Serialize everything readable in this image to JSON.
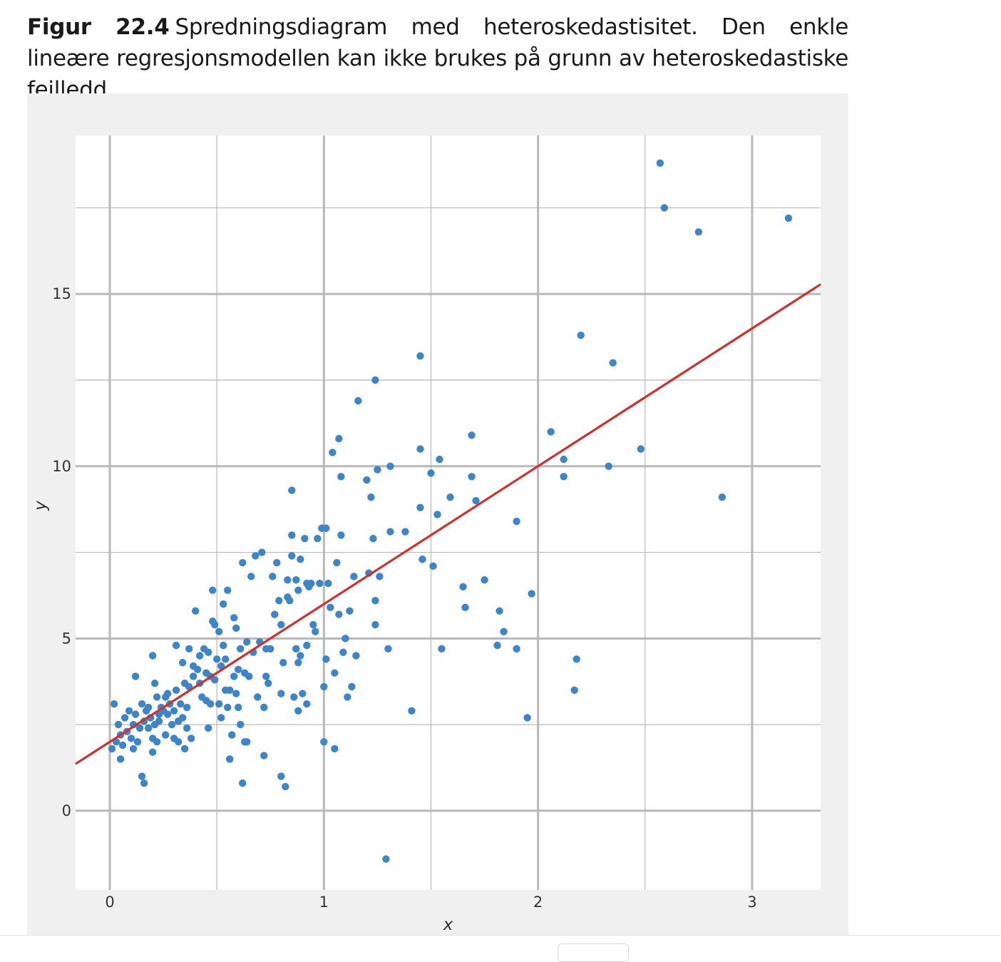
{
  "caption": {
    "label": "Figur 22.4",
    "text": "Spredningsdiagram med heteroskedastisitet. Den enkle lineære regresjonsmodellen kan ikke brukes på grunn av heteroskedastiske feilledd."
  },
  "chart_data": {
    "type": "scatter",
    "title": "",
    "xlabel": "x",
    "ylabel": "y",
    "xlim": [
      -0.16,
      3.32
    ],
    "ylim": [
      -2.3,
      19.6
    ],
    "xticks": [
      0,
      1,
      2,
      3
    ],
    "xtick_labels": [
      "0",
      "1",
      "2",
      "3"
    ],
    "yticks": [
      0,
      5,
      10,
      15
    ],
    "ytick_labels": [
      "0",
      "5",
      "10",
      "15"
    ],
    "x_minor_grid": [
      0.5,
      1.5,
      2.5
    ],
    "y_minor_grid": [
      2.5,
      7.5,
      12.5,
      17.5
    ],
    "grid": true,
    "point_color": "#3d85c6",
    "line_color": "#d03030",
    "panel_color": "#ffffff",
    "frame_color": "#f0f0f0",
    "grid_color": "#b8b8b8",
    "regression_line": {
      "intercept": 2.0,
      "slope": 4.0,
      "x_range": [
        -0.16,
        3.32
      ]
    },
    "points": [
      [
        0.02,
        3.1
      ],
      [
        0.01,
        1.8
      ],
      [
        0.03,
        2.0
      ],
      [
        0.05,
        2.2
      ],
      [
        0.04,
        2.5
      ],
      [
        0.06,
        1.9
      ],
      [
        0.07,
        2.7
      ],
      [
        0.08,
        2.3
      ],
      [
        0.09,
        2.9
      ],
      [
        0.05,
        1.5
      ],
      [
        0.1,
        2.1
      ],
      [
        0.11,
        2.5
      ],
      [
        0.12,
        3.9
      ],
      [
        0.11,
        1.8
      ],
      [
        0.13,
        2.0
      ],
      [
        0.12,
        2.8
      ],
      [
        0.14,
        2.4
      ],
      [
        0.15,
        3.1
      ],
      [
        0.16,
        2.6
      ],
      [
        0.17,
        2.9
      ],
      [
        0.15,
        1.0
      ],
      [
        0.16,
        0.8
      ],
      [
        0.18,
        3.0
      ],
      [
        0.18,
        2.4
      ],
      [
        0.19,
        2.7
      ],
      [
        0.2,
        4.5
      ],
      [
        0.2,
        2.1
      ],
      [
        0.21,
        2.5
      ],
      [
        0.2,
        1.7
      ],
      [
        0.21,
        3.7
      ],
      [
        0.22,
        3.3
      ],
      [
        0.23,
        2.8
      ],
      [
        0.22,
        2.0
      ],
      [
        0.24,
        3.0
      ],
      [
        0.23,
        2.6
      ],
      [
        0.25,
        2.9
      ],
      [
        0.26,
        3.3
      ],
      [
        0.26,
        2.2
      ],
      [
        0.27,
        2.8
      ],
      [
        0.27,
        3.4
      ],
      [
        0.28,
        3.1
      ],
      [
        0.29,
        2.5
      ],
      [
        0.3,
        2.9
      ],
      [
        0.3,
        2.1
      ],
      [
        0.31,
        4.8
      ],
      [
        0.31,
        3.5
      ],
      [
        0.32,
        2.6
      ],
      [
        0.32,
        2.0
      ],
      [
        0.33,
        3.1
      ],
      [
        0.34,
        2.7
      ],
      [
        0.34,
        4.3
      ],
      [
        0.35,
        3.7
      ],
      [
        0.35,
        1.8
      ],
      [
        0.36,
        2.4
      ],
      [
        0.36,
        3.0
      ],
      [
        0.37,
        4.7
      ],
      [
        0.37,
        3.6
      ],
      [
        0.38,
        2.1
      ],
      [
        0.39,
        4.2
      ],
      [
        0.39,
        3.9
      ],
      [
        0.4,
        5.8
      ],
      [
        0.41,
        4.1
      ],
      [
        0.42,
        4.5
      ],
      [
        0.42,
        3.7
      ],
      [
        0.43,
        3.3
      ],
      [
        0.44,
        4.7
      ],
      [
        0.45,
        4.0
      ],
      [
        0.45,
        3.2
      ],
      [
        0.46,
        4.6
      ],
      [
        0.46,
        2.4
      ],
      [
        0.47,
        3.1
      ],
      [
        0.47,
        3.9
      ],
      [
        0.48,
        5.5
      ],
      [
        0.48,
        6.4
      ],
      [
        0.49,
        5.4
      ],
      [
        0.49,
        3.8
      ],
      [
        0.5,
        4.4
      ],
      [
        0.51,
        5.2
      ],
      [
        0.51,
        3.1
      ],
      [
        0.52,
        4.2
      ],
      [
        0.52,
        2.7
      ],
      [
        0.53,
        6.0
      ],
      [
        0.53,
        4.8
      ],
      [
        0.54,
        4.4
      ],
      [
        0.54,
        3.5
      ],
      [
        0.55,
        6.4
      ],
      [
        0.55,
        3.0
      ],
      [
        0.56,
        1.5
      ],
      [
        0.56,
        3.5
      ],
      [
        0.57,
        2.2
      ],
      [
        0.58,
        5.6
      ],
      [
        0.58,
        3.9
      ],
      [
        0.59,
        5.3
      ],
      [
        0.59,
        3.4
      ],
      [
        0.6,
        4.1
      ],
      [
        0.6,
        3.0
      ],
      [
        0.61,
        4.7
      ],
      [
        0.61,
        2.5
      ],
      [
        0.62,
        7.2
      ],
      [
        0.62,
        0.8
      ],
      [
        0.63,
        4.0
      ],
      [
        0.63,
        2.0
      ],
      [
        0.64,
        4.9
      ],
      [
        0.64,
        2.0
      ],
      [
        0.65,
        3.9
      ],
      [
        0.66,
        6.8
      ],
      [
        0.67,
        4.6
      ],
      [
        0.68,
        7.4
      ],
      [
        0.69,
        3.3
      ],
      [
        0.7,
        4.9
      ],
      [
        0.71,
        7.5
      ],
      [
        0.72,
        1.6
      ],
      [
        0.72,
        3.0
      ],
      [
        0.73,
        4.7
      ],
      [
        0.73,
        3.9
      ],
      [
        0.74,
        3.7
      ],
      [
        0.75,
        4.7
      ],
      [
        0.76,
        6.8
      ],
      [
        0.77,
        5.7
      ],
      [
        0.78,
        7.2
      ],
      [
        0.79,
        6.1
      ],
      [
        0.8,
        5.4
      ],
      [
        0.8,
        3.4
      ],
      [
        0.8,
        1.0
      ],
      [
        0.81,
        4.3
      ],
      [
        0.82,
        0.7
      ],
      [
        0.83,
        6.2
      ],
      [
        0.83,
        6.7
      ],
      [
        0.84,
        6.1
      ],
      [
        0.85,
        9.3
      ],
      [
        0.85,
        8.0
      ],
      [
        0.85,
        7.4
      ],
      [
        0.86,
        3.3
      ],
      [
        0.87,
        4.7
      ],
      [
        0.87,
        6.7
      ],
      [
        0.88,
        6.4
      ],
      [
        0.88,
        4.3
      ],
      [
        0.88,
        2.9
      ],
      [
        0.89,
        7.3
      ],
      [
        0.89,
        4.5
      ],
      [
        0.9,
        3.4
      ],
      [
        0.91,
        7.9
      ],
      [
        0.92,
        6.6
      ],
      [
        0.92,
        4.8
      ],
      [
        0.92,
        3.1
      ],
      [
        0.93,
        6.5
      ],
      [
        0.94,
        6.6
      ],
      [
        0.95,
        5.4
      ],
      [
        0.96,
        5.2
      ],
      [
        0.97,
        7.9
      ],
      [
        0.98,
        6.6
      ],
      [
        0.99,
        8.2
      ],
      [
        1.0,
        3.6
      ],
      [
        1.0,
        2.0
      ],
      [
        1.01,
        8.2
      ],
      [
        1.01,
        4.4
      ],
      [
        1.02,
        6.6
      ],
      [
        1.03,
        5.9
      ],
      [
        1.04,
        10.4
      ],
      [
        1.05,
        4.0
      ],
      [
        1.05,
        1.8
      ],
      [
        1.06,
        7.2
      ],
      [
        1.07,
        10.8
      ],
      [
        1.07,
        5.7
      ],
      [
        1.08,
        9.7
      ],
      [
        1.08,
        8.0
      ],
      [
        1.09,
        4.6
      ],
      [
        1.1,
        5.0
      ],
      [
        1.11,
        3.3
      ],
      [
        1.12,
        5.8
      ],
      [
        1.13,
        3.6
      ],
      [
        1.14,
        6.8
      ],
      [
        1.15,
        4.5
      ],
      [
        1.16,
        11.9
      ],
      [
        1.2,
        9.6
      ],
      [
        1.21,
        6.9
      ],
      [
        1.22,
        9.1
      ],
      [
        1.23,
        7.9
      ],
      [
        1.24,
        12.5
      ],
      [
        1.24,
        6.1
      ],
      [
        1.24,
        5.4
      ],
      [
        1.25,
        9.9
      ],
      [
        1.26,
        6.8
      ],
      [
        1.29,
        -1.4
      ],
      [
        1.3,
        4.7
      ],
      [
        1.31,
        10.0
      ],
      [
        1.31,
        8.1
      ],
      [
        1.38,
        8.1
      ],
      [
        1.41,
        2.9
      ],
      [
        1.45,
        13.2
      ],
      [
        1.45,
        10.5
      ],
      [
        1.45,
        8.8
      ],
      [
        1.46,
        7.3
      ],
      [
        1.5,
        9.8
      ],
      [
        1.51,
        7.1
      ],
      [
        1.53,
        8.6
      ],
      [
        1.54,
        10.2
      ],
      [
        1.55,
        4.7
      ],
      [
        1.59,
        9.1
      ],
      [
        1.65,
        6.5
      ],
      [
        1.66,
        5.9
      ],
      [
        1.69,
        10.9
      ],
      [
        1.69,
        9.7
      ],
      [
        1.71,
        9.0
      ],
      [
        1.75,
        6.7
      ],
      [
        1.81,
        4.8
      ],
      [
        1.82,
        5.8
      ],
      [
        1.84,
        5.2
      ],
      [
        1.9,
        8.4
      ],
      [
        1.9,
        4.7
      ],
      [
        1.95,
        2.7
      ],
      [
        1.97,
        6.3
      ],
      [
        2.06,
        11.0
      ],
      [
        2.12,
        10.2
      ],
      [
        2.12,
        9.7
      ],
      [
        2.17,
        3.5
      ],
      [
        2.18,
        4.4
      ],
      [
        2.2,
        13.8
      ],
      [
        2.33,
        10.0
      ],
      [
        2.35,
        13.0
      ],
      [
        2.48,
        10.5
      ],
      [
        2.57,
        18.8
      ],
      [
        2.59,
        17.5
      ],
      [
        2.75,
        16.8
      ],
      [
        2.86,
        9.1
      ],
      [
        3.17,
        17.2
      ]
    ]
  }
}
